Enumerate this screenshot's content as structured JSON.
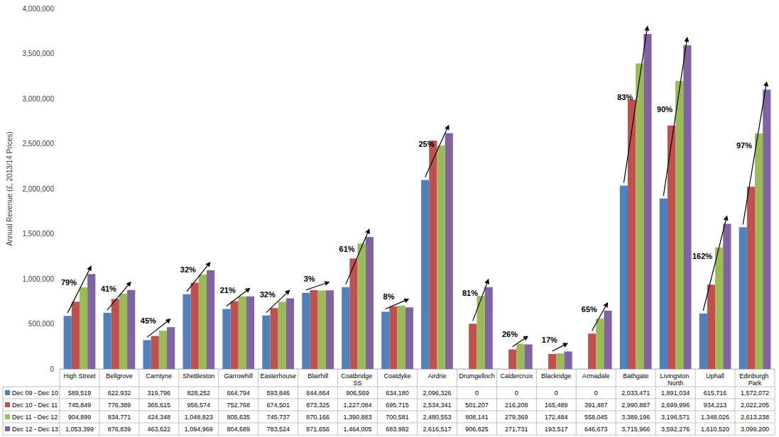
{
  "chart_data": {
    "type": "bar",
    "ylabel": "Annual Revenue (£, 2013/14 Prices)",
    "categories": [
      "High Street",
      "Bellgrove",
      "Carntyne",
      "Shettleston",
      "Garrowhill",
      "Easterhouse",
      "Blairhill",
      "Coatbridge SS",
      "Coatdyke",
      "Airdrie",
      "Drumgelloch",
      "Caldercruix",
      "Blackridge",
      "Armadale",
      "Bathgate",
      "Livingston North",
      "Uphall",
      "Edinburgh Park"
    ],
    "series": [
      {
        "name": "Dec 09 - Dec 10",
        "color": "#4f81bd",
        "values": [
          589519,
          622932,
          319796,
          828252,
          664794,
          593846,
          844864,
          906569,
          634180,
          2096326,
          0,
          0,
          0,
          0,
          2033471,
          1891034,
          615716,
          1572072
        ],
        "value_labels": [
          "589,519",
          "622,932",
          "319,796",
          "828,252",
          "664,794",
          "593,846",
          "844,864",
          "906,569",
          "634,180",
          "2,096,326",
          "0",
          "0",
          "0",
          "0",
          "2,033,471",
          "1,891,034",
          "615,716",
          "1,572,072"
        ]
      },
      {
        "name": "Dec 10 - Dec 11",
        "color": "#c0504d",
        "values": [
          745849,
          776389,
          365615,
          956574,
          752768,
          674501,
          873325,
          1227084,
          695715,
          2534341,
          501207,
          216208,
          165489,
          391487,
          2990887,
          2699996,
          934213,
          2022205
        ],
        "value_labels": [
          "745,849",
          "776,389",
          "365,615",
          "956,574",
          "752,768",
          "674,501",
          "873,325",
          "1,227,084",
          "695,715",
          "2,534,341",
          "501,207",
          "216,208",
          "165,489",
          "391,487",
          "2,990,887",
          "2,699,996",
          "934,213",
          "2,022,205"
        ]
      },
      {
        "name": "Dec 11 - Dec 12",
        "color": "#9bbb59",
        "values": [
          904899,
          834771,
          424348,
          1048823,
          805635,
          745737,
          870166,
          1390883,
          700581,
          2480553,
          808141,
          279369,
          172484,
          558045,
          3389196,
          3196571,
          1348026,
          2613238
        ],
        "value_labels": [
          "904,899",
          "834,771",
          "424,348",
          "1,048,823",
          "805,635",
          "745,737",
          "870,166",
          "1,390,883",
          "700,581",
          "2,480,553",
          "808,141",
          "279,369",
          "172,484",
          "558,045",
          "3,389,196",
          "3,196,571",
          "1,348,026",
          "2,613,238"
        ]
      },
      {
        "name": "Dec 12 - Dec 13",
        "color": "#8064a2",
        "values": [
          1053399,
          876839,
          463622,
          1094969,
          804689,
          783524,
          871656,
          1464005,
          683982,
          2616517,
          906625,
          271731,
          193517,
          646673,
          3715966,
          3592276,
          1610520,
          3099200
        ],
        "value_labels": [
          "1,053,399",
          "876,839",
          "463,622",
          "1,094,969",
          "804,689",
          "783,524",
          "871,656",
          "1,464,005",
          "683,982",
          "2,616,517",
          "906,625",
          "271,731",
          "193,517",
          "646,673",
          "3,715,966",
          "3,592,276",
          "1,610,520",
          "3,099,200"
        ]
      }
    ],
    "annotations": [
      {
        "category": "High Street",
        "text": "79%"
      },
      {
        "category": "Bellgrove",
        "text": "41%"
      },
      {
        "category": "Carntyne",
        "text": "45%"
      },
      {
        "category": "Shettleston",
        "text": "32%"
      },
      {
        "category": "Garrowhill",
        "text": "21%"
      },
      {
        "category": "Easterhouse",
        "text": "32%"
      },
      {
        "category": "Blairhill",
        "text": "3%"
      },
      {
        "category": "Coatbridge SS",
        "text": "61%"
      },
      {
        "category": "Coatdyke",
        "text": "8%"
      },
      {
        "category": "Airdrie",
        "text": "25%"
      },
      {
        "category": "Drumgelloch",
        "text": "81%"
      },
      {
        "category": "Caldercruix",
        "text": "26%"
      },
      {
        "category": "Blackridge",
        "text": "17%"
      },
      {
        "category": "Armadale",
        "text": "65%"
      },
      {
        "category": "Bathgate",
        "text": "83%"
      },
      {
        "category": "Livingston North",
        "text": "90%"
      },
      {
        "category": "Uphall",
        "text": "162%"
      },
      {
        "category": "Edinburgh Park",
        "text": "97%"
      }
    ],
    "ylim": [
      0,
      4000000
    ],
    "yticks": [
      0,
      {
        "value": 500000,
        "label": "500,000"
      },
      {
        "value": 1000000,
        "label": "1,000,000"
      },
      {
        "value": 1500000,
        "label": "1,500,000"
      },
      {
        "value": 2000000,
        "label": "2,000,000"
      },
      {
        "value": 2500000,
        "label": "2,500,000"
      },
      {
        "value": 3000000,
        "label": "3,000,000"
      },
      {
        "value": 3500000,
        "label": "3,500,000"
      },
      {
        "value": 4000000,
        "label": "4,000,000"
      }
    ],
    "grid": false
  }
}
